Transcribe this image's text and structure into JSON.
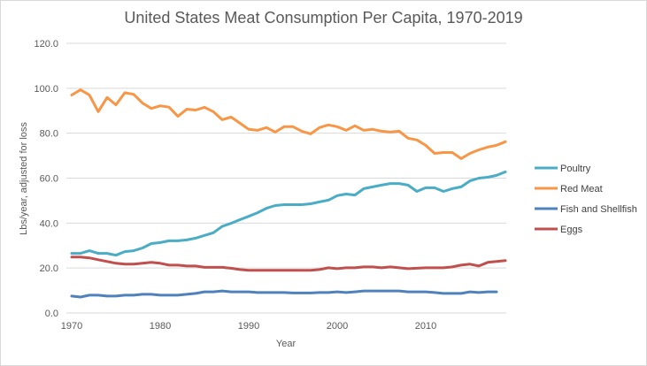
{
  "chart_data": {
    "type": "line",
    "title": "United States Meat Consumption Per Capita, 1970-2019",
    "xlabel": "Year",
    "ylabel": "Lbs/year, adjusted for loss",
    "xlim": [
      1970,
      2019
    ],
    "ylim": [
      0,
      120
    ],
    "yticks": [
      "0.0",
      "20.0",
      "40.0",
      "60.0",
      "80.0",
      "100.0",
      "120.0"
    ],
    "ytick_values": [
      0,
      20,
      40,
      60,
      80,
      100,
      120
    ],
    "xticks": [
      "1970",
      "1980",
      "1990",
      "2000",
      "2010"
    ],
    "xtick_values": [
      1970,
      1980,
      1990,
      2000,
      2010
    ],
    "grid": "horizontal",
    "legend_position": "right",
    "x": [
      1970,
      1971,
      1972,
      1973,
      1974,
      1975,
      1976,
      1977,
      1978,
      1979,
      1980,
      1981,
      1982,
      1983,
      1984,
      1985,
      1986,
      1987,
      1988,
      1989,
      1990,
      1991,
      1992,
      1993,
      1994,
      1995,
      1996,
      1997,
      1998,
      1999,
      2000,
      2001,
      2002,
      2003,
      2004,
      2005,
      2006,
      2007,
      2008,
      2009,
      2010,
      2011,
      2012,
      2013,
      2014,
      2015,
      2016,
      2017,
      2018,
      2019
    ],
    "series": [
      {
        "name": "Poultry",
        "color": "#4BACC6",
        "values": [
          26.5,
          26.5,
          27.7,
          26.5,
          26.5,
          25.7,
          27.3,
          27.7,
          28.9,
          30.9,
          31.3,
          32.1,
          32.1,
          32.5,
          33.3,
          34.5,
          35.7,
          38.5,
          39.9,
          41.5,
          43.0,
          44.6,
          46.6,
          47.8,
          48.2,
          48.2,
          48.2,
          48.6,
          49.4,
          50.2,
          52.2,
          52.9,
          52.5,
          55.3,
          56.1,
          56.9,
          57.6,
          57.6,
          56.9,
          54.1,
          55.7,
          55.7,
          54.1,
          55.3,
          56.1,
          58.8,
          60.0,
          60.4,
          61.2,
          62.8
        ]
      },
      {
        "name": "Red Meat",
        "color": "#F79646",
        "values": [
          97.0,
          99.3,
          97.0,
          89.6,
          95.9,
          92.6,
          98.0,
          97.3,
          93.4,
          91.0,
          92.2,
          91.6,
          87.5,
          90.7,
          90.3,
          91.5,
          89.6,
          86.0,
          87.2,
          84.5,
          81.7,
          81.3,
          82.5,
          80.5,
          82.9,
          82.9,
          80.9,
          79.7,
          82.5,
          83.7,
          82.9,
          81.3,
          83.3,
          81.3,
          81.7,
          80.9,
          80.5,
          80.9,
          77.8,
          77.0,
          74.6,
          71.0,
          71.4,
          71.4,
          68.7,
          71.0,
          72.6,
          73.8,
          74.6,
          76.2
        ]
      },
      {
        "name": "Fish and Shellfish",
        "color": "#4F81BD",
        "values": [
          7.5,
          7.1,
          7.9,
          7.9,
          7.5,
          7.5,
          7.9,
          7.9,
          8.3,
          8.3,
          7.9,
          7.9,
          7.9,
          8.3,
          8.7,
          9.4,
          9.4,
          9.8,
          9.4,
          9.4,
          9.4,
          9.1,
          9.1,
          9.1,
          9.1,
          8.9,
          8.9,
          8.9,
          9.1,
          9.1,
          9.4,
          9.1,
          9.4,
          9.8,
          9.8,
          9.8,
          9.8,
          9.8,
          9.4,
          9.4,
          9.4,
          9.1,
          8.7,
          8.7,
          8.7,
          9.4,
          9.1,
          9.4,
          9.4,
          null
        ]
      },
      {
        "name": "Eggs",
        "color": "#C0504D",
        "values": [
          24.9,
          24.9,
          24.5,
          23.7,
          22.9,
          22.1,
          21.7,
          21.7,
          22.1,
          22.5,
          22.1,
          21.3,
          21.3,
          20.9,
          20.9,
          20.3,
          20.3,
          20.3,
          19.9,
          19.3,
          19.0,
          19.0,
          19.0,
          19.0,
          19.0,
          19.0,
          19.0,
          19.0,
          19.3,
          20.1,
          19.7,
          20.1,
          20.1,
          20.5,
          20.5,
          20.1,
          20.5,
          20.1,
          19.7,
          19.9,
          20.1,
          20.1,
          20.1,
          20.5,
          21.3,
          21.7,
          20.9,
          22.5,
          22.9,
          23.3
        ]
      }
    ]
  }
}
